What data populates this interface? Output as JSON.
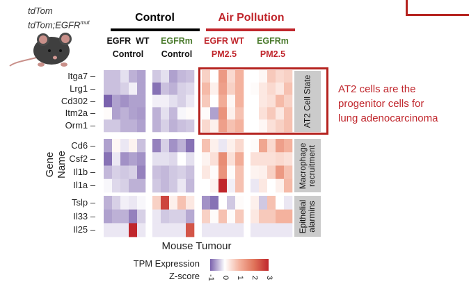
{
  "genotype_labels": {
    "line1": "tdTom",
    "line2_prefix": "tdTom;EGFR",
    "line2_sup": "mut"
  },
  "groups": {
    "control": {
      "label": "Control",
      "color": "#000000"
    },
    "air_pollution": {
      "label": "Air Pollution",
      "color": "#c0262c"
    }
  },
  "conditions": [
    {
      "line1": "EGFR  WT",
      "line2": "Control",
      "color1": "#111111",
      "color2": "#111111"
    },
    {
      "line1": "EGFRm",
      "line2": "Control",
      "color1": "#4a7a2c",
      "color2": "#111111"
    },
    {
      "line1": "EGFR WT",
      "line2": "PM2.5",
      "color1": "#c0262c",
      "color2": "#c0262c"
    },
    {
      "line1": "EGFRm",
      "line2": "PM2.5",
      "color1": "#4a7a2c",
      "color2": "#c0262c"
    }
  ],
  "annotation": {
    "text_lines": [
      "AT2 cells are the",
      "progenitor cells for",
      "lung adenocarcinoma"
    ],
    "color": "#c0262c"
  },
  "chart_data": {
    "type": "heatmap",
    "title": "Mouse Tumour",
    "ylabel": "Gene Name",
    "colorbar": {
      "label1": "TPM Expression",
      "label2": "Z-score",
      "range": [
        -1,
        3
      ],
      "ticks": [
        "-1",
        "0",
        "1",
        "2",
        "3"
      ],
      "low_color": "#7a62ad",
      "mid_color": "#ffffff",
      "high_color": "#c0262c"
    },
    "column_groups": [
      "EGFR WT Control",
      "EGFRm Control",
      "EGFR WT PM2.5",
      "EGFRm PM2.5"
    ],
    "columns_per_group": 5,
    "row_blocks": [
      {
        "label": "AT2 Cell State",
        "genes": [
          "Itga7",
          "Lrg1",
          "Cd302",
          "Itm2a",
          "Orm1"
        ]
      },
      {
        "label": "Macrophage recruitment",
        "genes": [
          "Cd6",
          "Csf2",
          "Il1b",
          "Il1a"
        ]
      },
      {
        "label": "Epithelial alarmins",
        "genes": [
          "Tslp",
          "Il33",
          "Il25"
        ]
      }
    ],
    "values": {
      "Itga7": [
        [
          -0.4,
          -0.4,
          -0.2,
          -0.5,
          -0.6
        ],
        [
          -0.35,
          -0.2,
          -0.6,
          -0.45,
          -0.4
        ],
        [
          0.6,
          0.0,
          1.4,
          0.5,
          1.0
        ],
        [
          0,
          0.1,
          0.7,
          0.5,
          0.6
        ]
      ],
      "Lrg1": [
        [
          -0.4,
          -0.4,
          -0.3,
          -0.1,
          -0.6
        ],
        [
          -0.9,
          -0.4,
          -0.5,
          -0.3,
          -0.25
        ],
        [
          0.9,
          0.2,
          1.3,
          0.6,
          1.0
        ],
        [
          0.05,
          0.3,
          0.5,
          0.3,
          0.8
        ]
      ],
      "Cd302": [
        [
          -1.0,
          -0.6,
          -0.7,
          -0.6,
          -0.6
        ],
        [
          -0.1,
          -0.1,
          -0.2,
          -0.3,
          -0.15
        ],
        [
          0.7,
          0.0,
          1.1,
          0.1,
          1.0
        ],
        [
          0,
          0.3,
          0.4,
          0.9,
          0.6
        ]
      ],
      "Itm2a": [
        [
          0.05,
          -0.6,
          -0.5,
          -0.6,
          -0.65
        ],
        [
          -0.5,
          -0.2,
          -0.45,
          -0.05,
          0.05
        ],
        [
          0.05,
          -0.6,
          1.5,
          0.2,
          0.8
        ],
        [
          0,
          0.4,
          0.7,
          0.3,
          0.8
        ]
      ],
      "Orm1": [
        [
          -0.35,
          -0.35,
          -0.5,
          -0.5,
          -0.6
        ],
        [
          -0.5,
          -0.3,
          -0.5,
          -0.4,
          -0.35
        ],
        [
          0.5,
          0.2,
          1.3,
          0.8,
          1.0
        ],
        [
          0,
          0.1,
          0.4,
          0.6,
          0.8
        ]
      ],
      "Cd6": [
        [
          -0.6,
          0.1,
          -0.15,
          0.15,
          -0.4
        ],
        [
          -0.8,
          -0.3,
          -0.7,
          -0.5,
          -0.9
        ],
        [
          0.8,
          0.2,
          -0.15,
          0.2,
          0.5
        ],
        [
          0.05,
          1.2,
          0.5,
          1.3,
          1.0
        ]
      ],
      "Csf2": [
        [
          -0.9,
          -0.15,
          -0.7,
          -0.6,
          -0.7
        ],
        [
          -0.2,
          -0.2,
          -0.25,
          0,
          -0.2
        ],
        [
          0.15,
          0.4,
          1.6,
          0.4,
          1.1
        ],
        [
          0.4,
          0.4,
          0.4,
          0.5,
          0.4
        ]
      ],
      "Il1b": [
        [
          -0.45,
          -0.3,
          -0.35,
          -0.3,
          -0.8
        ],
        [
          -0.4,
          -0.45,
          -0.35,
          -0.3,
          -0.4
        ],
        [
          0.3,
          0.05,
          1.5,
          0.05,
          0.8
        ],
        [
          0.15,
          0.2,
          0.6,
          1.4,
          0.8
        ]
      ],
      "Il1a": [
        [
          -0.05,
          -0.25,
          -0.3,
          -0.5,
          -0.5
        ],
        [
          -0.35,
          -0.45,
          -0.35,
          -0.15,
          -0.45
        ],
        [
          0,
          0.15,
          3.0,
          -0.1,
          0.8
        ],
        [
          -0.15,
          0.3,
          0,
          0.2,
          0.9
        ]
      ],
      "Tslp": [
        [
          -0.5,
          -0.3,
          -0.1,
          -0.15,
          -0.05
        ],
        [
          0.6,
          2.6,
          0.2,
          0.8,
          0.3
        ],
        [
          -0.7,
          -0.9,
          0,
          -0.35,
          0.05
        ],
        [
          0.2,
          -0.35,
          0.8,
          0,
          -0.15
        ]
      ],
      "Il33": [
        [
          -0.6,
          -0.5,
          -0.5,
          -0.8,
          -0.3
        ],
        [
          -0.15,
          -0.35,
          -0.3,
          -0.3,
          -0.55
        ],
        [
          0.6,
          0.05,
          0.8,
          0.05,
          0.7
        ],
        [
          0.3,
          0.7,
          0.7,
          1.0,
          1.0
        ]
      ],
      "Il25": [
        [
          -0.15,
          -0.15,
          -0.15,
          3.0,
          -0.15
        ],
        [
          -0.15,
          -0.15,
          -0.15,
          -0.15,
          2.4
        ],
        [
          -0.15,
          -0.15,
          -0.15,
          -0.15,
          -0.15
        ],
        [
          -0.15,
          -0.15,
          -0.15,
          -0.15,
          -0.15
        ]
      ]
    }
  }
}
